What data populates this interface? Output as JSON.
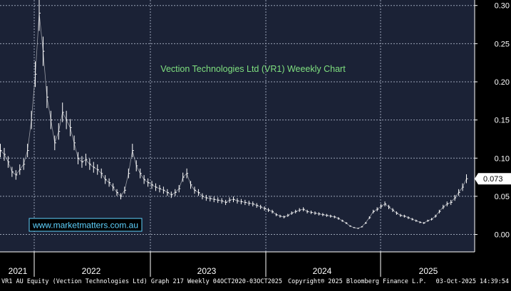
{
  "chart_data": {
    "type": "line",
    "title": "Vection Technologies Ltd (VR1) Weeekly Chart",
    "watermark": "www.marketmatters.com.au",
    "ylim": [
      -0.02,
      0.31
    ],
    "yticks": [
      0.0,
      0.05,
      0.1,
      0.15,
      0.2,
      0.25,
      0.3
    ],
    "ytick_labels": [
      "0.00",
      "0.05",
      "0.10",
      "0.15",
      "0.20",
      "0.25",
      "0.30"
    ],
    "x_axis_labels": [
      "2021",
      "2022",
      "2023",
      "2024",
      "2025"
    ],
    "last_price_label": "0.073",
    "last_price": 0.073,
    "grid": true,
    "colors": {
      "background": "#000000",
      "plot_background": "#1b2236",
      "line": "#ffffff",
      "grid": "#9aa3b5",
      "title": "#7fe07f",
      "watermark": "#5fd3ff",
      "last_price_box": "#ffffff"
    },
    "series": [
      {
        "values": [
          0.11,
          0.105,
          0.095,
          0.082,
          0.078,
          0.085,
          0.092,
          0.11,
          0.15,
          0.21,
          0.29,
          0.24,
          0.18,
          0.15,
          0.12,
          0.135,
          0.16,
          0.15,
          0.14,
          0.12,
          0.1,
          0.095,
          0.098,
          0.092,
          0.088,
          0.085,
          0.08,
          0.072,
          0.068,
          0.062,
          0.055,
          0.05,
          0.058,
          0.08,
          0.11,
          0.09,
          0.08,
          0.072,
          0.068,
          0.065,
          0.062,
          0.06,
          0.058,
          0.055,
          0.052,
          0.055,
          0.06,
          0.075,
          0.08,
          0.065,
          0.058,
          0.055,
          0.05,
          0.048,
          0.047,
          0.046,
          0.045,
          0.044,
          0.042,
          0.045,
          0.046,
          0.044,
          0.043,
          0.042,
          0.041,
          0.04,
          0.038,
          0.036,
          0.034,
          0.032,
          0.03,
          0.026,
          0.024,
          0.023,
          0.025,
          0.028,
          0.03,
          0.032,
          0.033,
          0.03,
          0.029,
          0.028,
          0.027,
          0.026,
          0.025,
          0.024,
          0.023,
          0.021,
          0.018,
          0.015,
          0.011,
          0.009,
          0.008,
          0.01,
          0.015,
          0.022,
          0.03,
          0.033,
          0.037,
          0.04,
          0.036,
          0.032,
          0.028,
          0.025,
          0.024,
          0.022,
          0.02,
          0.018,
          0.016,
          0.015,
          0.018,
          0.02,
          0.024,
          0.03,
          0.036,
          0.04,
          0.042,
          0.048,
          0.055,
          0.062,
          0.073
        ]
      }
    ]
  },
  "footer": {
    "left": "VR1 AU Equity (Vection Technologies Ltd) Graph 217 Weekly 04OCT2020-03OCT2025",
    "mid": "Copyright® 2025 Bloomberg Finance L.P.",
    "right": "03-Oct-2025 14:39:54"
  }
}
